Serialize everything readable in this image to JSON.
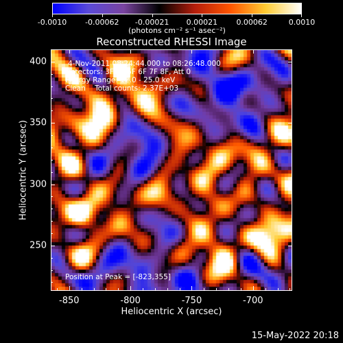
{
  "colorbar": {
    "tick_labels": [
      "-0.0010",
      "-0.00062",
      "-0.00021",
      "0.00021",
      "0.00062",
      "0.0010"
    ],
    "units": "(photons cm⁻² s⁻¹ asec⁻²)",
    "range": [
      -0.001,
      0.001
    ],
    "colors": [
      "#0000ff",
      "#5a4ad8",
      "#7a44a0",
      "#000000",
      "#b51e0c",
      "#ff5500",
      "#ffcc33",
      "#ffffff"
    ]
  },
  "annotations": {
    "line1": "4-Nov-2011 08:24:44.000 to 08:26:48.000",
    "line2": "Detectors: 3F 4F 5F 6F 7F 8F, Att 0",
    "line3": "Energy Range: 12.0 - 25.0 keV",
    "line4": "Clean    Total counts: 2.37E+03",
    "peak": "Position at Peak = [-823,355]"
  },
  "chart_data": {
    "type": "heatmap",
    "title": "Reconstructed RHESSI Image",
    "xlabel": "Heliocentric X (arcsec)",
    "ylabel": "Heliocentric Y (arcsec)",
    "xlim": [
      -865,
      -668
    ],
    "ylim": [
      213,
      410
    ],
    "xticks": [
      -850,
      -800,
      -750,
      -700
    ],
    "yticks": [
      250,
      300,
      350,
      400
    ],
    "xtick_labels": [
      "-850",
      "-800",
      "-750",
      "-700"
    ],
    "ytick_labels": [
      "250",
      "300",
      "350",
      "400"
    ],
    "colormap": "blue-purple-black-red-yellow-white",
    "peak_position": [
      -823,
      355
    ],
    "bright_sources": [
      {
        "x": -823,
        "y": 355,
        "value": 0.001
      },
      {
        "x": -845,
        "y": 340,
        "value": 0.00085
      },
      {
        "x": -858,
        "y": 320,
        "value": 0.0008
      },
      {
        "x": -838,
        "y": 280,
        "value": 0.0009
      },
      {
        "x": -810,
        "y": 265,
        "value": 0.0008
      },
      {
        "x": -842,
        "y": 245,
        "value": 0.00085
      },
      {
        "x": -775,
        "y": 292,
        "value": 0.00095
      },
      {
        "x": -768,
        "y": 355,
        "value": 0.0008
      },
      {
        "x": -790,
        "y": 380,
        "value": 0.0007
      },
      {
        "x": -748,
        "y": 330,
        "value": 0.0007
      },
      {
        "x": -735,
        "y": 285,
        "value": 0.00075
      },
      {
        "x": -700,
        "y": 310,
        "value": 0.0008
      },
      {
        "x": -690,
        "y": 260,
        "value": 0.0009
      },
      {
        "x": -720,
        "y": 230,
        "value": 0.0007
      },
      {
        "x": -855,
        "y": 395,
        "value": 0.0008
      },
      {
        "x": -810,
        "y": 395,
        "value": 0.00065
      },
      {
        "x": -685,
        "y": 370,
        "value": 0.0005
      },
      {
        "x": -755,
        "y": 250,
        "value": 0.0005
      }
    ],
    "dark_regions": [
      {
        "x": -810,
        "y": 225,
        "value": -0.0007
      },
      {
        "x": -760,
        "y": 220,
        "value": -0.0008
      },
      {
        "x": -700,
        "y": 380,
        "value": -0.0008
      },
      {
        "x": -740,
        "y": 395,
        "value": -0.0007
      },
      {
        "x": -790,
        "y": 320,
        "value": -0.0006
      },
      {
        "x": -675,
        "y": 230,
        "value": -0.0007
      },
      {
        "x": -720,
        "y": 355,
        "value": -0.0006
      }
    ]
  },
  "footer": {
    "timestamp": "15-May-2022 20:18"
  }
}
